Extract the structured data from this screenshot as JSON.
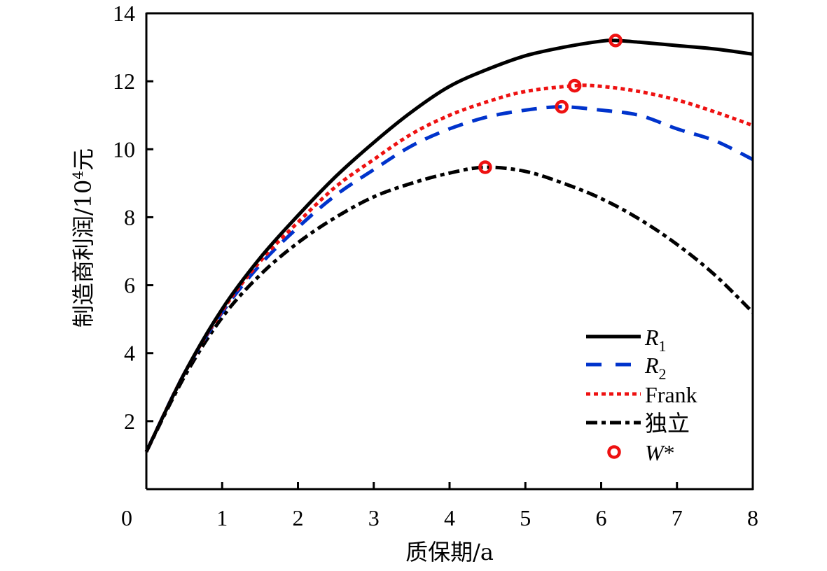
{
  "chart_data": {
    "type": "line",
    "title": "",
    "xlabel": "质保期/a",
    "ylabel": "制造商利润/10⁴元",
    "ylabel_parts": {
      "main": "制造商利润/10",
      "sup": "4",
      "unit": "元"
    },
    "xlim": [
      0,
      8
    ],
    "ylim": [
      0,
      14
    ],
    "xticks": [
      "0",
      "1",
      "2",
      "3",
      "4",
      "5",
      "6",
      "7",
      "8"
    ],
    "yticks": [
      "2",
      "4",
      "6",
      "8",
      "10",
      "12",
      "14"
    ],
    "grid": false,
    "legend_position": "bottom-right",
    "series": [
      {
        "name": "R1",
        "legend_main": "R",
        "legend_sub": "1",
        "color": "#000000",
        "style": "solid",
        "x": [
          0,
          0.5,
          1,
          1.5,
          2,
          2.5,
          3,
          3.5,
          4,
          4.5,
          5,
          5.5,
          6,
          6.19,
          6.5,
          7,
          7.5,
          8
        ],
        "y": [
          1.1,
          3.4,
          5.3,
          6.8,
          8.05,
          9.2,
          10.2,
          11.1,
          11.85,
          12.35,
          12.75,
          13.0,
          13.18,
          13.2,
          13.15,
          13.05,
          12.95,
          12.8
        ]
      },
      {
        "name": "R2",
        "legend_main": "R",
        "legend_sub": "2",
        "color": "#0033cc",
        "style": "dashed",
        "x": [
          0,
          0.5,
          1,
          1.5,
          2,
          2.5,
          3,
          3.5,
          4,
          4.5,
          5,
          5.48,
          6,
          6.5,
          7,
          7.5,
          8
        ],
        "y": [
          1.1,
          3.4,
          5.2,
          6.6,
          7.7,
          8.65,
          9.4,
          10.1,
          10.6,
          10.95,
          11.15,
          11.25,
          11.15,
          11.0,
          10.6,
          10.25,
          9.7
        ]
      },
      {
        "name": "Frank",
        "legend_main": "Frank",
        "legend_sub": "",
        "color": "#ee1111",
        "style": "dotted",
        "x": [
          0,
          0.5,
          1,
          1.5,
          2,
          2.5,
          3,
          3.5,
          4,
          4.5,
          5,
          5.65,
          6,
          6.5,
          7,
          7.5,
          8
        ],
        "y": [
          1.1,
          3.4,
          5.25,
          6.7,
          7.85,
          8.9,
          9.7,
          10.45,
          11.0,
          11.4,
          11.7,
          11.87,
          11.85,
          11.7,
          11.45,
          11.1,
          10.7
        ]
      },
      {
        "name": "独立",
        "legend_main": "独立",
        "legend_sub": "",
        "color": "#000000",
        "style": "dashdot",
        "x": [
          0,
          0.5,
          1,
          1.5,
          2,
          2.5,
          3,
          3.5,
          4,
          4.47,
          5,
          5.5,
          6,
          6.5,
          7,
          7.5,
          8
        ],
        "y": [
          1.1,
          3.3,
          5.05,
          6.3,
          7.25,
          8.0,
          8.6,
          9.0,
          9.3,
          9.47,
          9.35,
          9.0,
          8.55,
          7.95,
          7.2,
          6.3,
          5.2
        ]
      }
    ],
    "optima": {
      "name": "W*",
      "legend_main": "W",
      "legend_suffix": "*",
      "color": "#ee1111",
      "points": [
        {
          "series": "R1",
          "x": 6.19,
          "y": 13.2
        },
        {
          "series": "Frank",
          "x": 5.65,
          "y": 11.87
        },
        {
          "series": "R2",
          "x": 5.48,
          "y": 11.25
        },
        {
          "series": "独立",
          "x": 4.47,
          "y": 9.47
        }
      ]
    }
  }
}
